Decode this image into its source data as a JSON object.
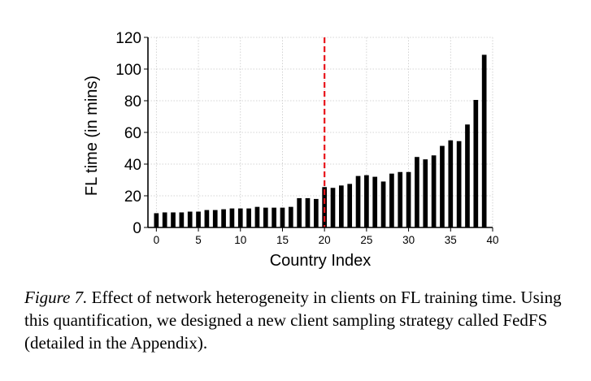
{
  "chart_data": {
    "type": "bar",
    "xlabel": "Country Index",
    "ylabel": "FL time (in mins)",
    "xlim": [
      -1,
      40
    ],
    "ylim": [
      0,
      120
    ],
    "xticks": [
      0,
      5,
      10,
      15,
      20,
      25,
      30,
      35,
      40
    ],
    "yticks": [
      0,
      20,
      40,
      60,
      80,
      100,
      120
    ],
    "grid": true,
    "x": [
      0,
      1,
      2,
      3,
      4,
      5,
      6,
      7,
      8,
      9,
      10,
      11,
      12,
      13,
      14,
      15,
      16,
      17,
      18,
      19,
      20,
      21,
      22,
      23,
      24,
      25,
      26,
      27,
      28,
      29,
      30,
      31,
      32,
      33,
      34,
      35,
      36,
      37,
      38,
      39
    ],
    "values": [
      9,
      9.5,
      9.5,
      9.5,
      10,
      10,
      11,
      11,
      11.5,
      12,
      12,
      12,
      13,
      12.5,
      12.5,
      12.5,
      13,
      18.5,
      18.5,
      18,
      25.5,
      25,
      26.5,
      27.5,
      32.5,
      33,
      32,
      29,
      34,
      35,
      35,
      44.5,
      43,
      45.5,
      51.5,
      55,
      54.5,
      65,
      80.5,
      109
    ],
    "bar_color": "#000000",
    "reference_line": {
      "x": 20,
      "color": "#e8141b",
      "style": "dashed"
    }
  },
  "caption": {
    "label": "Figure 7.",
    "text": " Effect of network heterogeneity in clients on FL training time. Using this quantification, we designed a new client sampling strategy called FedFS (detailed in the Appendix)."
  }
}
